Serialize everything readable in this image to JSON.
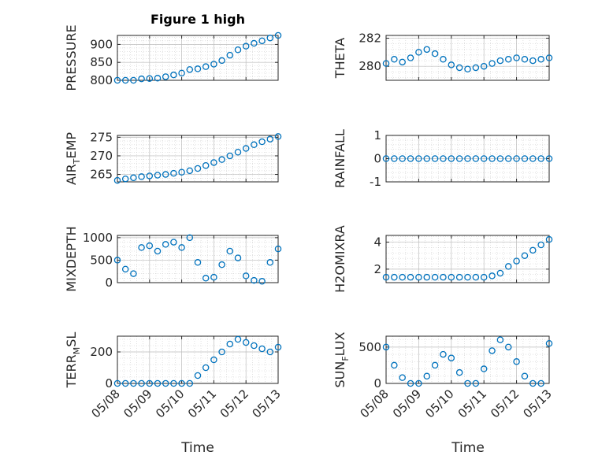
{
  "figure": {
    "title": "Figure 1 high",
    "xlabel": "Time",
    "marker_color": "#0072BD",
    "x_ticks": [
      "05/08",
      "05/09",
      "05/10",
      "05/11",
      "05/12",
      "05/13"
    ]
  },
  "chart_data": [
    {
      "type": "scatter",
      "ylabel": "PRESSURE",
      "ylabel_sub": "",
      "ylabel_after": "",
      "ylim": [
        800,
        925
      ],
      "yticks": [
        800,
        850,
        900
      ],
      "xlim": [
        0,
        5
      ],
      "grid": true,
      "x": [
        0.0,
        0.25,
        0.5,
        0.75,
        1.0,
        1.25,
        1.5,
        1.75,
        2.0,
        2.25,
        2.5,
        2.75,
        3.0,
        3.25,
        3.5,
        3.75,
        4.0,
        4.25,
        4.5,
        4.75,
        5.0
      ],
      "y": [
        800,
        800,
        800,
        804,
        805,
        806,
        810,
        815,
        820,
        830,
        832,
        838,
        845,
        855,
        870,
        885,
        895,
        903,
        910,
        918,
        925
      ]
    },
    {
      "type": "scatter",
      "ylabel": "THETA",
      "ylabel_sub": "",
      "ylabel_after": "",
      "ylim": [
        279,
        282.2
      ],
      "yticks": [
        280,
        282
      ],
      "xlim": [
        0,
        5
      ],
      "grid": true,
      "x": [
        0.0,
        0.25,
        0.5,
        0.75,
        1.0,
        1.25,
        1.5,
        1.75,
        2.0,
        2.25,
        2.5,
        2.75,
        3.0,
        3.25,
        3.5,
        3.75,
        4.0,
        4.25,
        4.5,
        4.75,
        5.0
      ],
      "y": [
        280.2,
        280.5,
        280.3,
        280.6,
        281.0,
        281.2,
        280.9,
        280.5,
        280.1,
        279.9,
        279.8,
        279.9,
        280.0,
        280.2,
        280.4,
        280.5,
        280.6,
        280.5,
        280.4,
        280.5,
        280.6
      ]
    },
    {
      "type": "scatter",
      "ylabel": "AIR",
      "ylabel_sub": "T",
      "ylabel_after": "EMP",
      "ylim": [
        263,
        275.5
      ],
      "yticks": [
        265,
        270,
        275
      ],
      "xlim": [
        0,
        5
      ],
      "grid": true,
      "x": [
        0.0,
        0.25,
        0.5,
        0.75,
        1.0,
        1.25,
        1.5,
        1.75,
        2.0,
        2.25,
        2.5,
        2.75,
        3.0,
        3.25,
        3.5,
        3.75,
        4.0,
        4.25,
        4.5,
        4.75,
        5.0
      ],
      "y": [
        263.4,
        263.8,
        264.1,
        264.4,
        264.6,
        264.8,
        265.0,
        265.3,
        265.6,
        266.0,
        266.6,
        267.4,
        268.2,
        269.0,
        270.0,
        271.0,
        272.0,
        273.0,
        273.8,
        274.5,
        275.2
      ]
    },
    {
      "type": "scatter",
      "ylabel": "RAINFALL",
      "ylabel_sub": "",
      "ylabel_after": "",
      "ylim": [
        -1,
        1
      ],
      "yticks": [
        -1,
        0,
        1
      ],
      "xlim": [
        0,
        5
      ],
      "grid": true,
      "x": [
        0.0,
        0.25,
        0.5,
        0.75,
        1.0,
        1.25,
        1.5,
        1.75,
        2.0,
        2.25,
        2.5,
        2.75,
        3.0,
        3.25,
        3.5,
        3.75,
        4.0,
        4.25,
        4.5,
        4.75,
        5.0
      ],
      "y": [
        0,
        0,
        0,
        0,
        0,
        0,
        0,
        0,
        0,
        0,
        0,
        0,
        0,
        0,
        0,
        0,
        0,
        0,
        0,
        0,
        0
      ]
    },
    {
      "type": "scatter",
      "ylabel": "MIXDEPTH",
      "ylabel_sub": "",
      "ylabel_after": "",
      "ylim": [
        0,
        1050
      ],
      "yticks": [
        0,
        500,
        1000
      ],
      "xlim": [
        0,
        5
      ],
      "grid": true,
      "x": [
        0.0,
        0.25,
        0.5,
        0.75,
        1.0,
        1.25,
        1.5,
        1.75,
        2.0,
        2.25,
        2.5,
        2.75,
        3.0,
        3.25,
        3.5,
        3.75,
        4.0,
        4.25,
        4.5,
        4.75,
        5.0
      ],
      "y": [
        500,
        300,
        200,
        780,
        820,
        700,
        850,
        900,
        780,
        1000,
        450,
        100,
        120,
        400,
        700,
        550,
        150,
        50,
        30,
        450,
        750
      ]
    },
    {
      "type": "scatter",
      "ylabel": "H2OMIXRA",
      "ylabel_sub": "",
      "ylabel_after": "",
      "ylim": [
        1,
        4.5
      ],
      "yticks": [
        2,
        4
      ],
      "xlim": [
        0,
        5
      ],
      "grid": true,
      "x": [
        0.0,
        0.25,
        0.5,
        0.75,
        1.0,
        1.25,
        1.5,
        1.75,
        2.0,
        2.25,
        2.5,
        2.75,
        3.0,
        3.25,
        3.5,
        3.75,
        4.0,
        4.25,
        4.5,
        4.75,
        5.0
      ],
      "y": [
        1.4,
        1.4,
        1.4,
        1.4,
        1.4,
        1.4,
        1.4,
        1.4,
        1.4,
        1.4,
        1.4,
        1.4,
        1.4,
        1.5,
        1.7,
        2.2,
        2.6,
        3.0,
        3.4,
        3.8,
        4.2
      ]
    },
    {
      "type": "scatter",
      "ylabel": "TERR",
      "ylabel_sub": "M",
      "ylabel_after": "SL",
      "ylim": [
        0,
        300
      ],
      "yticks": [
        0,
        200
      ],
      "xlim": [
        0,
        5
      ],
      "grid": true,
      "x": [
        0.0,
        0.25,
        0.5,
        0.75,
        1.0,
        1.25,
        1.5,
        1.75,
        2.0,
        2.25,
        2.5,
        2.75,
        3.0,
        3.25,
        3.5,
        3.75,
        4.0,
        4.25,
        4.5,
        4.75,
        5.0
      ],
      "y": [
        0,
        0,
        0,
        0,
        0,
        0,
        0,
        0,
        0,
        0,
        50,
        100,
        150,
        200,
        250,
        280,
        260,
        240,
        220,
        200,
        230
      ]
    },
    {
      "type": "scatter",
      "ylabel": "SUN",
      "ylabel_sub": "F",
      "ylabel_after": "LUX",
      "ylim": [
        0,
        650
      ],
      "yticks": [
        0,
        500
      ],
      "xlim": [
        0,
        5
      ],
      "grid": true,
      "x": [
        0.0,
        0.25,
        0.5,
        0.75,
        1.0,
        1.25,
        1.5,
        1.75,
        2.0,
        2.25,
        2.5,
        2.75,
        3.0,
        3.25,
        3.5,
        3.75,
        4.0,
        4.25,
        4.5,
        4.75,
        5.0
      ],
      "y": [
        500,
        250,
        80,
        0,
        0,
        100,
        250,
        400,
        350,
        150,
        0,
        0,
        200,
        450,
        600,
        500,
        300,
        100,
        0,
        0,
        550
      ]
    }
  ]
}
